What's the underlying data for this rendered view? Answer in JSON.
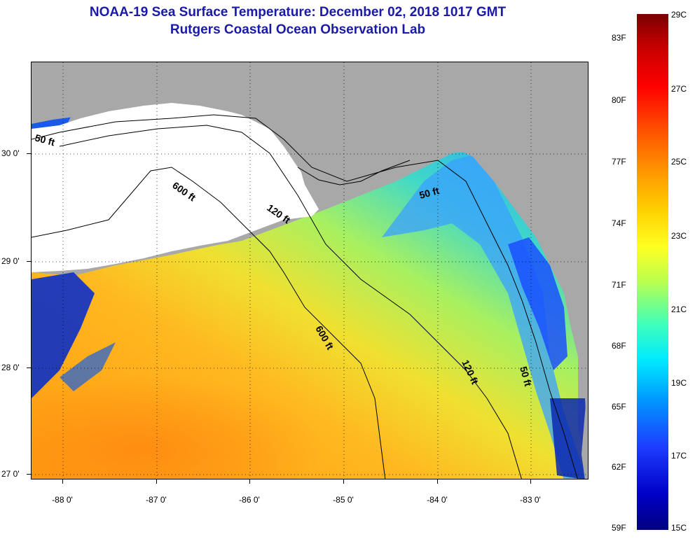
{
  "header": {
    "title": "NOAA-19 Sea Surface Temperature:  December 02, 2018 1017 GMT",
    "subtitle": "Rutgers Coastal Ocean Observation Lab"
  },
  "axes": {
    "lat_labels": [
      "30 0'",
      "29 0'",
      "28 0'",
      "27 0'"
    ],
    "lon_labels": [
      "-88 0'",
      "-87 0'",
      "-86 0'",
      "-85 0'",
      "-84 0'",
      "-83 0'"
    ]
  },
  "contours": {
    "label_50_nw": "50 ft",
    "label_600_a": "600 ft",
    "label_120_a": "120 ft",
    "label_50_ne": "50 ft",
    "label_600_b": "600 ft",
    "label_120_b": "120 ft",
    "label_50_e": "50 ft"
  },
  "colorbar": {
    "fahrenheit": [
      "83F",
      "80F",
      "77F",
      "74F",
      "71F",
      "68F",
      "65F",
      "62F",
      "59F"
    ],
    "celsius": [
      "29C",
      "27C",
      "25C",
      "23C",
      "21C",
      "19C",
      "17C",
      "15C"
    ]
  },
  "colors": {
    "title": "#1a1aa8",
    "land": "#a8a8a8",
    "nodata": "#ffffff"
  }
}
